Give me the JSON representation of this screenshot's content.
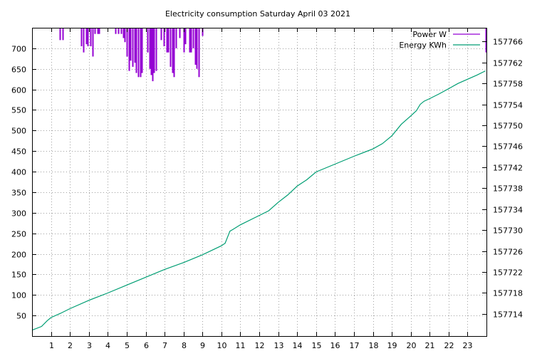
{
  "chart_data": {
    "type": "line",
    "title": "Electricity consumption Saturday April 03 2021",
    "x_axis": {
      "range": [
        0,
        24
      ],
      "ticks": [
        1,
        2,
        3,
        4,
        5,
        6,
        7,
        8,
        9,
        10,
        11,
        12,
        13,
        14,
        15,
        16,
        17,
        18,
        19,
        20,
        21,
        22,
        23
      ]
    },
    "y_left": {
      "range": [
        0,
        750
      ],
      "ticks": [
        50,
        100,
        150,
        200,
        250,
        300,
        350,
        400,
        450,
        500,
        550,
        600,
        650,
        700
      ]
    },
    "y_right": {
      "range": [
        157709.77,
        157768.63
      ],
      "ticks": [
        157714,
        157718,
        157722,
        157726,
        157730,
        157734,
        157738,
        157742,
        157746,
        157750,
        157754,
        157758,
        157762,
        157766
      ]
    },
    "grid": true,
    "legend_placement": "top-right",
    "series": [
      {
        "name": "Power W",
        "axis": "left",
        "color": "#9400d3",
        "style": "impulses-from-top",
        "points": [
          [
            1.45,
            720
          ],
          [
            1.6,
            720
          ],
          [
            2.6,
            705
          ],
          [
            2.72,
            690
          ],
          [
            2.85,
            710
          ],
          [
            2.95,
            705
          ],
          [
            3.1,
            705
          ],
          [
            3.2,
            680
          ],
          [
            3.3,
            735
          ],
          [
            3.45,
            735
          ],
          [
            3.55,
            735
          ],
          [
            4.4,
            735
          ],
          [
            4.55,
            735
          ],
          [
            4.7,
            735
          ],
          [
            4.8,
            725
          ],
          [
            4.9,
            715
          ],
          [
            5.0,
            680
          ],
          [
            5.1,
            645
          ],
          [
            5.2,
            670
          ],
          [
            5.3,
            655
          ],
          [
            5.4,
            665
          ],
          [
            5.5,
            640
          ],
          [
            5.6,
            630
          ],
          [
            5.7,
            630
          ],
          [
            5.8,
            640
          ],
          [
            6.1,
            690
          ],
          [
            6.2,
            650
          ],
          [
            6.3,
            635
          ],
          [
            6.35,
            620
          ],
          [
            6.45,
            640
          ],
          [
            6.55,
            645
          ],
          [
            6.8,
            720
          ],
          [
            6.95,
            705
          ],
          [
            7.1,
            690
          ],
          [
            7.2,
            690
          ],
          [
            7.3,
            655
          ],
          [
            7.4,
            640
          ],
          [
            7.5,
            630
          ],
          [
            7.6,
            700
          ],
          [
            7.8,
            725
          ],
          [
            8.0,
            690
          ],
          [
            8.1,
            710
          ],
          [
            8.3,
            690
          ],
          [
            8.4,
            690
          ],
          [
            8.5,
            700
          ],
          [
            8.6,
            660
          ],
          [
            8.7,
            650
          ],
          [
            8.8,
            630
          ],
          [
            9.0,
            730
          ],
          [
            23.95,
            690
          ]
        ]
      },
      {
        "name": "Energy KWh",
        "axis": "right",
        "color": "#009e73",
        "style": "line",
        "points": [
          [
            0.0,
            157710.9
          ],
          [
            0.5,
            157711.6
          ],
          [
            0.8,
            157712.7
          ],
          [
            1.0,
            157713.3
          ],
          [
            1.5,
            157714.1
          ],
          [
            2.0,
            157715.0
          ],
          [
            3.0,
            157716.6
          ],
          [
            4.0,
            157718.0
          ],
          [
            5.0,
            157719.5
          ],
          [
            6.0,
            157721.0
          ],
          [
            7.0,
            157722.5
          ],
          [
            8.0,
            157723.8
          ],
          [
            9.0,
            157725.3
          ],
          [
            10.0,
            157727.0
          ],
          [
            10.2,
            157727.5
          ],
          [
            10.45,
            157729.8
          ],
          [
            10.6,
            157730.1
          ],
          [
            11.0,
            157731.0
          ],
          [
            12.0,
            157732.8
          ],
          [
            12.5,
            157733.7
          ],
          [
            13.0,
            157735.3
          ],
          [
            13.5,
            157736.7
          ],
          [
            14.0,
            157738.4
          ],
          [
            14.5,
            157739.6
          ],
          [
            15.0,
            157741.1
          ],
          [
            16.0,
            157742.6
          ],
          [
            17.0,
            157744.1
          ],
          [
            18.0,
            157745.5
          ],
          [
            18.5,
            157746.5
          ],
          [
            19.0,
            157748.0
          ],
          [
            19.5,
            157750.2
          ],
          [
            20.0,
            157751.8
          ],
          [
            20.3,
            157752.8
          ],
          [
            20.5,
            157754.0
          ],
          [
            20.7,
            157754.6
          ],
          [
            21.0,
            157755.1
          ],
          [
            21.5,
            157756.0
          ],
          [
            22.0,
            157757.0
          ],
          [
            22.5,
            157758.0
          ],
          [
            23.0,
            157758.8
          ],
          [
            23.5,
            157759.6
          ],
          [
            23.95,
            157760.4
          ]
        ]
      }
    ]
  }
}
